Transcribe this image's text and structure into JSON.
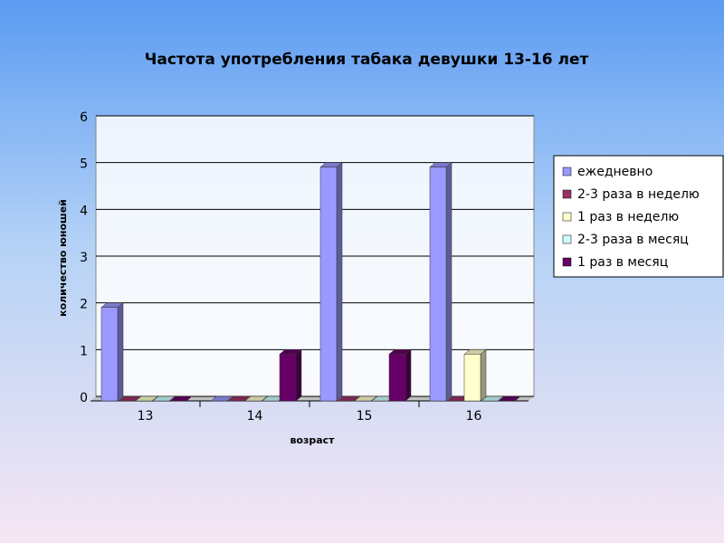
{
  "chart_data": {
    "type": "bar",
    "title": "Частота употребления табака девушки 13-16 лет",
    "x_label": "возраст",
    "y_label": "количество юношей",
    "categories": [
      "13",
      "14",
      "15",
      "16"
    ],
    "series": [
      {
        "name": "ежедневно",
        "color": "#9999ff",
        "values": [
          2,
          0,
          5,
          5
        ]
      },
      {
        "name": "2-3 раза в неделю",
        "color": "#993366",
        "values": [
          0,
          0,
          0,
          0
        ]
      },
      {
        "name": "1 раз в неделю",
        "color": "#ffffcc",
        "values": [
          0,
          0,
          0,
          1
        ]
      },
      {
        "name": "2-3 раза в месяц",
        "color": "#ccffff",
        "values": [
          0,
          0,
          0,
          0
        ]
      },
      {
        "name": "1 раз в месяц",
        "color": "#660066",
        "values": [
          0,
          1,
          1,
          0
        ]
      }
    ],
    "ylim": [
      0,
      6
    ],
    "yticks": [
      0,
      1,
      2,
      3,
      4,
      5,
      6
    ],
    "grid": true,
    "legend": "right"
  }
}
